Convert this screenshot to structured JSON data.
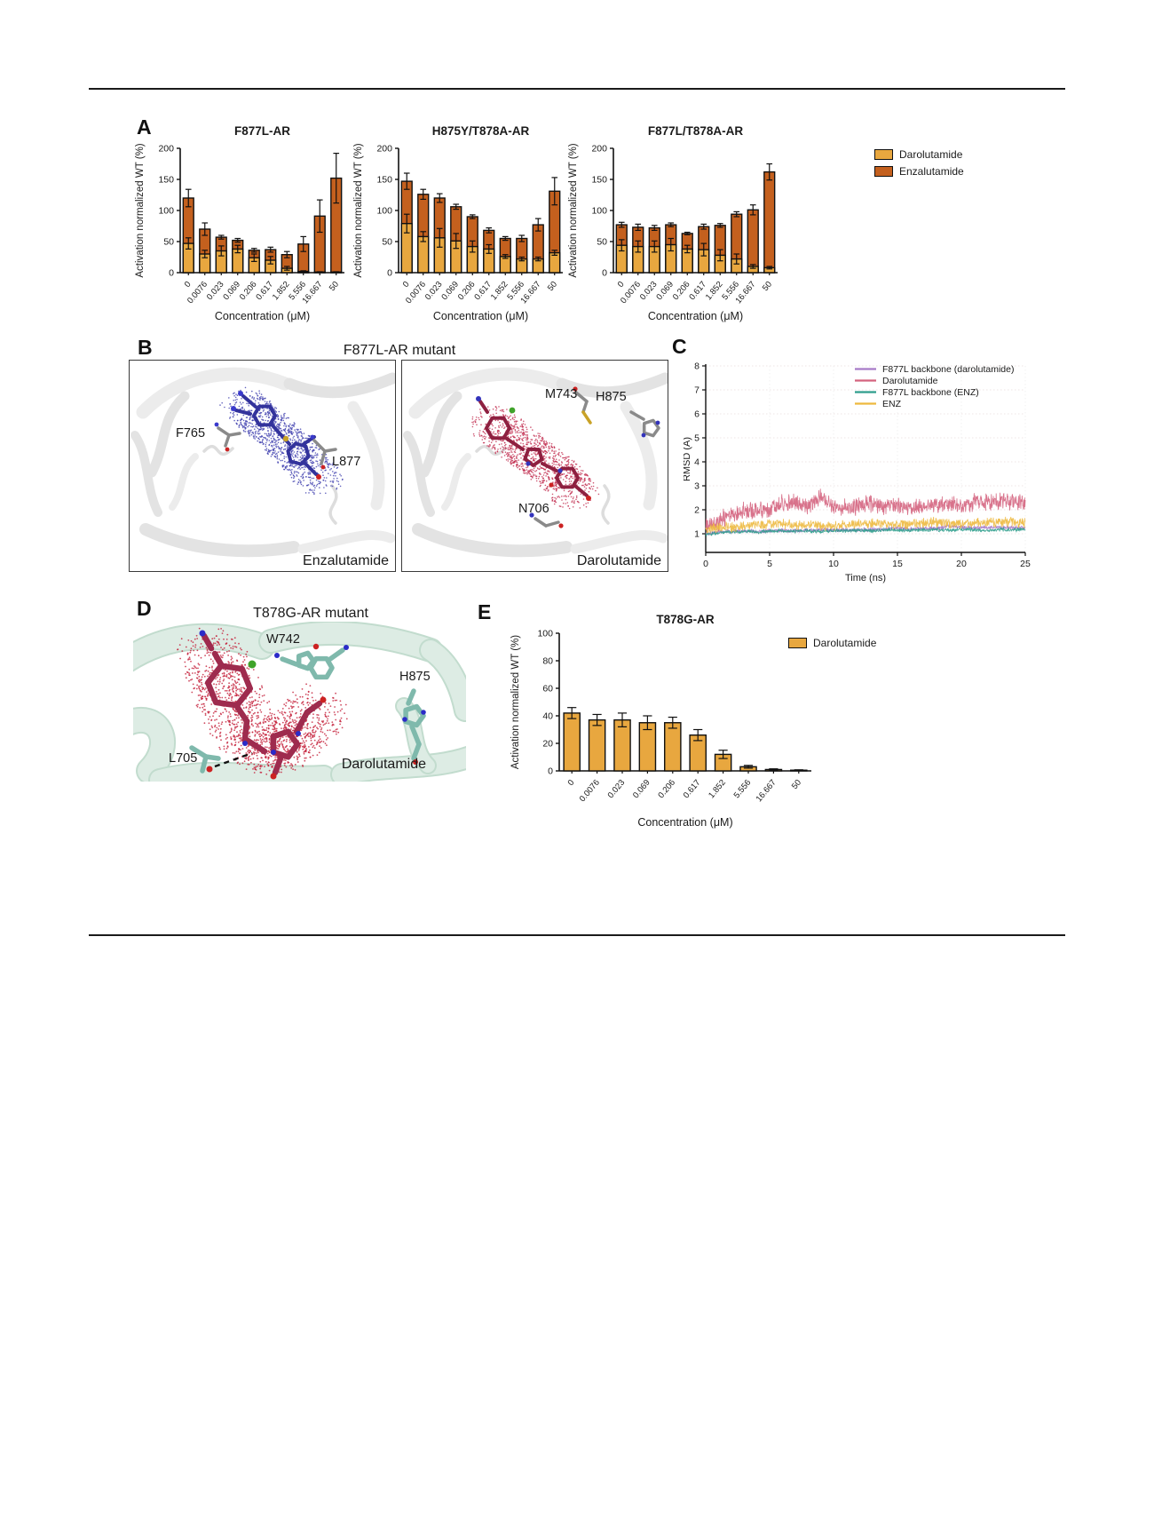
{
  "figure": {
    "panel_a_label": "A",
    "panel_b_label": "B",
    "panel_c_label": "C",
    "panel_d_label": "D",
    "panel_e_label": "E",
    "panel_b_title": "F877L-AR mutant",
    "panel_d_title": "T878G-AR mutant",
    "colors": {
      "darolutamide": "#E8A73F",
      "enzalutamide": "#C4601E"
    },
    "legend_a": [
      {
        "label": "Darolutamide",
        "color": "#E8A73F"
      },
      {
        "label": "Enzalutamide",
        "color": "#C4601E"
      }
    ],
    "panel_e_legend": [
      {
        "label": "Darolutamide",
        "color": "#E8A73F"
      }
    ],
    "panel_b": {
      "left": {
        "residue_labels": [
          "F765",
          "L877"
        ],
        "caption": "Enzalutamide",
        "mesh_color": "#3F3FAE",
        "ligand_color": "#33339C"
      },
      "right": {
        "residue_labels": [
          "M743",
          "H875",
          "N706"
        ],
        "caption": "Darolutamide",
        "mesh_color": "#C22E50",
        "ligand_color": "#8E2040"
      }
    },
    "panel_d": {
      "residue_labels": [
        "W742",
        "H875",
        "L705"
      ],
      "caption": "Darolutamide",
      "mesh_color": "#C41F3A",
      "ligand_color": "#9E2B4E",
      "ribbon_color": "#DDECE4",
      "residue_color": "#7FB9AC"
    }
  },
  "chart_data": [
    {
      "id": "a1",
      "type": "bar",
      "title": "F877L-AR",
      "xlabel": "Concentration (μM)",
      "ylabel": "Activation normalized WT (%)",
      "ylim": [
        0,
        200
      ],
      "yticks": [
        0,
        50,
        100,
        150,
        200
      ],
      "categories": [
        "0",
        "0.0076",
        "0.023",
        "0.069",
        "0.206",
        "0.617",
        "1.852",
        "5.556",
        "16.667",
        "50"
      ],
      "legend_position": "outside-right-shared",
      "series": [
        {
          "name": "Darolutamide",
          "color": "#E8A73F",
          "values": [
            47,
            30,
            35,
            38,
            24,
            20,
            7,
            2,
            1,
            1
          ],
          "errors": [
            9,
            6,
            8,
            6,
            6,
            6,
            3,
            1,
            0.5,
            0.5
          ]
        },
        {
          "name": "Enzalutamide",
          "color": "#C4601E",
          "values": [
            120,
            70,
            57,
            52,
            36,
            37,
            29,
            46,
            91,
            152
          ],
          "errors": [
            14,
            10,
            3,
            3,
            3,
            4,
            5,
            12,
            26,
            40
          ]
        }
      ]
    },
    {
      "id": "a2",
      "type": "bar",
      "title": "H875Y/T878A-AR",
      "xlabel": "Concentration (μM)",
      "ylabel": "Activation normalized WT (%)",
      "ylim": [
        0,
        200
      ],
      "yticks": [
        0,
        50,
        100,
        150,
        200
      ],
      "categories": [
        "0",
        "0.0076",
        "0.023",
        "0.069",
        "0.206",
        "0.617",
        "1.852",
        "5.556",
        "16.667",
        "50"
      ],
      "series": [
        {
          "name": "Darolutamide",
          "color": "#E8A73F",
          "values": [
            79,
            58,
            56,
            51,
            42,
            38,
            26,
            22,
            22,
            32
          ],
          "errors": [
            15,
            8,
            15,
            12,
            9,
            7,
            3,
            3,
            3,
            4
          ]
        },
        {
          "name": "Enzalutamide",
          "color": "#C4601E",
          "values": [
            147,
            126,
            120,
            106,
            90,
            68,
            55,
            55,
            77,
            131
          ],
          "errors": [
            13,
            8,
            7,
            4,
            3,
            4,
            3,
            5,
            10,
            22
          ]
        }
      ]
    },
    {
      "id": "a3",
      "type": "bar",
      "title": "F877L/T878A-AR",
      "xlabel": "Concentration (μM)",
      "ylabel": "Activation normalized WT (%)",
      "ylim": [
        0,
        200
      ],
      "yticks": [
        0,
        50,
        100,
        150,
        200
      ],
      "categories": [
        "0",
        "0.0076",
        "0.023",
        "0.069",
        "0.206",
        "0.617",
        "1.852",
        "5.556",
        "16.667",
        "50"
      ],
      "series": [
        {
          "name": "Darolutamide",
          "color": "#E8A73F",
          "values": [
            44,
            42,
            42,
            45,
            38,
            37,
            28,
            22,
            10,
            8
          ],
          "errors": [
            9,
            9,
            9,
            10,
            6,
            10,
            9,
            8,
            3,
            2
          ]
        },
        {
          "name": "Enzalutamide",
          "color": "#C4601E",
          "values": [
            77,
            73,
            72,
            77,
            63,
            74,
            76,
            94,
            101,
            162
          ],
          "errors": [
            4,
            5,
            4,
            3,
            2,
            4,
            3,
            4,
            8,
            13
          ]
        }
      ]
    },
    {
      "id": "c",
      "type": "line",
      "xlabel": "Time (ns)",
      "ylabel": "RMSD (Å)",
      "xlim": [
        0,
        25
      ],
      "xticks": [
        0,
        5,
        10,
        15,
        20,
        25
      ],
      "ylim": [
        0.3,
        8
      ],
      "yticks": [
        1,
        2,
        3,
        4,
        5,
        6,
        7,
        8
      ],
      "grid": true,
      "legend_position": "top-right",
      "series": [
        {
          "name": "F877L backbone (darolutamide)",
          "color": "#A77BC8",
          "noise": 0.07,
          "x_step_ns": 1,
          "y": [
            1.02,
            1.08,
            1.1,
            1.12,
            1.1,
            1.13,
            1.15,
            1.12,
            1.14,
            1.16,
            1.15,
            1.17,
            1.15,
            1.18,
            1.2,
            1.22,
            1.2,
            1.24,
            1.22,
            1.3,
            1.27,
            1.24,
            1.26,
            1.28,
            1.25,
            1.26
          ]
        },
        {
          "name": "Darolutamide",
          "color": "#D4637E",
          "noise": 0.28,
          "x_step_ns": 1,
          "y": [
            1.3,
            1.5,
            1.85,
            2.0,
            1.95,
            2.05,
            2.3,
            2.35,
            2.1,
            2.5,
            2.15,
            2.05,
            2.2,
            2.25,
            2.1,
            2.2,
            2.15,
            2.1,
            2.2,
            2.25,
            2.2,
            2.3,
            2.35,
            2.3,
            2.32,
            2.3
          ]
        },
        {
          "name": "F877L backbone (ENZ)",
          "color": "#2E9D8C",
          "noise": 0.06,
          "x_step_ns": 1,
          "y": [
            0.98,
            1.04,
            1.08,
            1.1,
            1.08,
            1.1,
            1.12,
            1.1,
            1.12,
            1.1,
            1.13,
            1.12,
            1.14,
            1.12,
            1.15,
            1.16,
            1.14,
            1.15,
            1.17,
            1.14,
            1.18,
            1.16,
            1.14,
            1.18,
            1.16,
            1.18
          ]
        },
        {
          "name": "ENZ",
          "color": "#EDB93F",
          "noise": 0.16,
          "x_step_ns": 1,
          "y": [
            1.18,
            1.28,
            1.25,
            1.3,
            1.35,
            1.4,
            1.42,
            1.35,
            1.38,
            1.35,
            1.3,
            1.36,
            1.4,
            1.44,
            1.4,
            1.36,
            1.4,
            1.44,
            1.48,
            1.44,
            1.4,
            1.45,
            1.5,
            1.46,
            1.5,
            1.46
          ]
        }
      ]
    },
    {
      "id": "e",
      "type": "bar",
      "title": "T878G-AR",
      "xlabel": "Concentration (μM)",
      "ylabel": "Activation normalized WT (%)",
      "ylim": [
        0,
        100
      ],
      "yticks": [
        0,
        20,
        40,
        60,
        80,
        100
      ],
      "categories": [
        "0",
        "0.0076",
        "0.023",
        "0.069",
        "0.206",
        "0.617",
        "1.852",
        "5.556",
        "16.667",
        "50"
      ],
      "legend_position": "right",
      "series": [
        {
          "name": "Darolutamide",
          "color": "#E8A73F",
          "values": [
            42,
            37,
            37,
            35,
            35,
            26,
            12,
            3,
            1,
            0.5
          ],
          "errors": [
            4,
            4,
            5,
            5,
            4,
            4,
            3,
            1,
            0.5,
            0.3
          ]
        }
      ]
    }
  ]
}
